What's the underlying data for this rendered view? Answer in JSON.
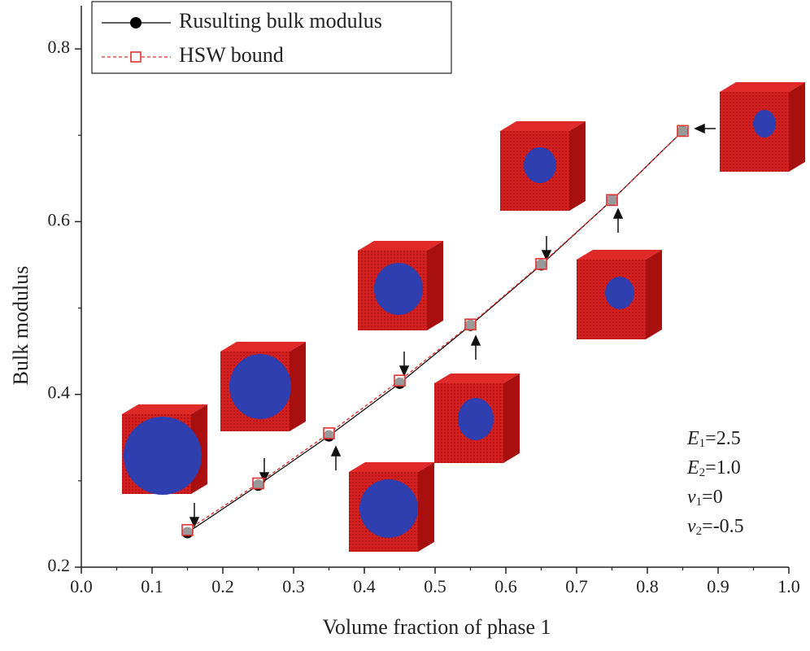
{
  "chart_data": {
    "type": "line",
    "x_label": "Volume fraction of phase 1",
    "y_label": "Bulk modulus",
    "x": [
      0.15,
      0.25,
      0.35,
      0.45,
      0.55,
      0.65,
      0.75,
      0.85
    ],
    "series": [
      {
        "name": "Rusulting bulk modulus",
        "color": "#000000",
        "values": [
          0.24,
          0.295,
          0.352,
          0.413,
          0.48,
          0.55,
          0.625,
          0.705
        ]
      },
      {
        "name": "HSW bound",
        "color": "#e03030",
        "values": [
          0.243,
          0.297,
          0.355,
          0.416,
          0.481,
          0.551,
          0.625,
          0.705
        ]
      }
    ],
    "xlim": [
      0,
      1
    ],
    "xticks": [
      {
        "value": 0,
        "label": "0.0"
      },
      0.1,
      0.2,
      0.3,
      0.4,
      0.5,
      0.6,
      0.7,
      0.8,
      0.9,
      {
        "value": 1,
        "label": "1.0"
      }
    ],
    "ylim": [
      0.2,
      0.85
    ],
    "yticks": [
      0.2,
      0.4,
      0.6,
      0.8
    ],
    "legend": "upper left",
    "annotations": [
      {
        "symbol": "E",
        "sub": "1",
        "text": "=2.5"
      },
      {
        "symbol": "E",
        "sub": "2",
        "text": "=1.0"
      },
      {
        "symbol": "v",
        "sub": "1",
        "text": "=0"
      },
      {
        "symbol": "v",
        "sub": "2",
        "text": "=-0.5"
      }
    ]
  }
}
